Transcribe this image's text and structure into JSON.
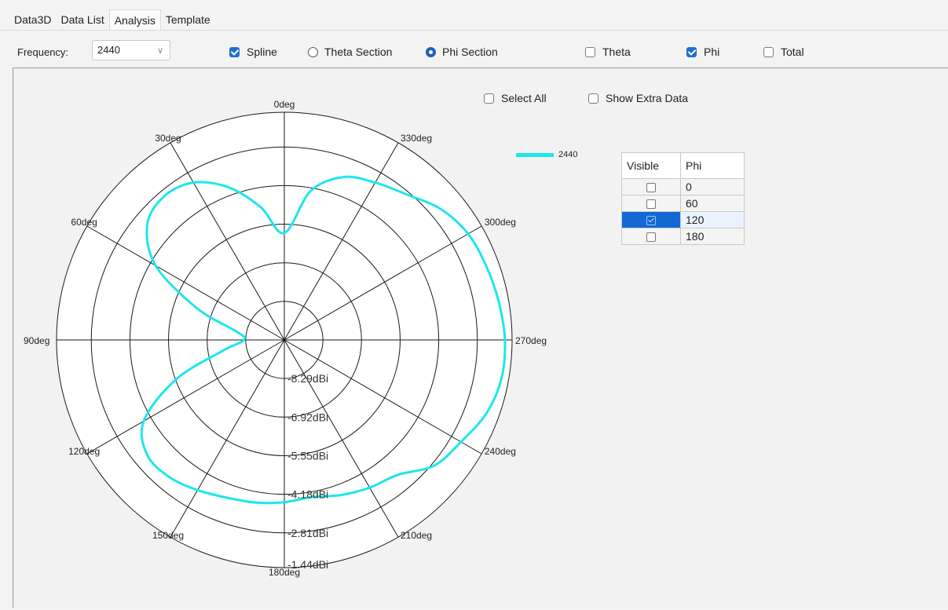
{
  "tabs": [
    {
      "label": "Data3D"
    },
    {
      "label": "Data List"
    },
    {
      "label": "Analysis"
    },
    {
      "label": "Template"
    }
  ],
  "toolbar": {
    "frequency_label": "Frequency:",
    "frequency_value": "2440",
    "spline_label": "Spline",
    "spline_checked": true,
    "theta_section_label": "Theta Section",
    "phi_section_label": "Phi Section",
    "section_selected": "Phi Section",
    "theta_label": "Theta",
    "theta_checked": false,
    "phi_label": "Phi",
    "phi_checked": true,
    "total_label": "Total",
    "total_checked": false
  },
  "options": {
    "select_all_label": "Select All",
    "show_extra_label": "Show Extra Data"
  },
  "legend": {
    "label": "2440",
    "color": "#1ee6ee"
  },
  "phi_table": {
    "headers": [
      "Visible",
      "Phi"
    ],
    "rows": [
      {
        "value": "0",
        "checked": false,
        "selected": false
      },
      {
        "value": "60",
        "checked": false,
        "selected": false
      },
      {
        "value": "120",
        "checked": true,
        "selected": true
      },
      {
        "value": "180",
        "checked": false,
        "selected": false
      }
    ]
  },
  "chart_data": {
    "type": "polar-line",
    "angle_labels": [
      "0deg",
      "30deg",
      "60deg",
      "90deg",
      "120deg",
      "150deg",
      "180deg",
      "210deg",
      "240deg",
      "270deg",
      "300deg",
      "330deg"
    ],
    "radial_labels": [
      "-8.29dBi",
      "-6.92dBi",
      "-5.55dBi",
      "-4.18dBi",
      "-2.81dBi",
      "-1.44dBi"
    ],
    "radial_min": -9.66,
    "radial_max": -1.44,
    "series": [
      {
        "name": "2440",
        "color": "#1ee6ee",
        "angles": [
          0,
          10,
          20,
          30,
          40,
          50,
          60,
          70,
          80,
          90,
          100,
          110,
          120,
          130,
          140,
          150,
          160,
          170,
          180,
          190,
          200,
          210,
          220,
          230,
          240,
          250,
          260,
          270,
          280,
          290,
          300,
          310,
          320,
          330,
          340,
          350
        ],
        "values": [
          -5.8,
          -4.8,
          -3.8,
          -3.1,
          -2.9,
          -3.2,
          -4.3,
          -6.3,
          -7.9,
          -8.2,
          -7.4,
          -5.5,
          -3.8,
          -3.2,
          -3.2,
          -3.4,
          -3.6,
          -3.7,
          -3.8,
          -3.9,
          -3.7,
          -3.5,
          -3.3,
          -2.6,
          -2.3,
          -1.9,
          -1.7,
          -1.7,
          -1.8,
          -1.9,
          -2.0,
          -2.3,
          -2.8,
          -3.1,
          -3.4,
          -4.2
        ]
      }
    ]
  }
}
